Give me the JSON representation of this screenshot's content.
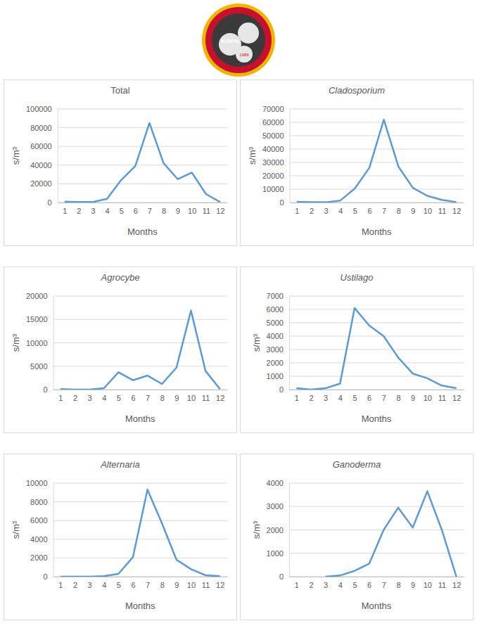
{
  "logo": {
    "text": "KONYA",
    "year": "1989"
  },
  "chart_data": [
    {
      "type": "line",
      "title": "Total",
      "x_label": "Months",
      "y_label": "s/m³",
      "categories": [
        "1",
        "2",
        "3",
        "4",
        "5",
        "6",
        "7",
        "8",
        "9",
        "10",
        "11",
        "12"
      ],
      "values": [
        1000,
        500,
        500,
        4000,
        24000,
        39000,
        85000,
        42000,
        25000,
        32000,
        9000,
        500
      ],
      "color": "#5b9bd5",
      "ylim": [
        0,
        100000
      ],
      "yticks": [
        0,
        20000,
        40000,
        60000,
        80000,
        100000
      ],
      "grid": true
    },
    {
      "type": "line",
      "title": "Cladosporium",
      "x_label": "Months",
      "y_label": "s/m³",
      "categories": [
        "1",
        "2",
        "3",
        "4",
        "5",
        "6",
        "7",
        "8",
        "9",
        "10",
        "11",
        "12"
      ],
      "values": [
        500,
        200,
        200,
        1500,
        10500,
        26000,
        62000,
        27000,
        11000,
        5000,
        2000,
        300
      ],
      "color": "#5b9bd5",
      "ylim": [
        0,
        70000
      ],
      "yticks": [
        0,
        10000,
        20000,
        30000,
        40000,
        50000,
        60000,
        70000
      ],
      "grid": true
    },
    {
      "type": "line",
      "title": "Agrocybe",
      "x_label": "Months",
      "y_label": "s/m³",
      "categories": [
        "1",
        "2",
        "3",
        "4",
        "5",
        "6",
        "7",
        "8",
        "9",
        "10",
        "11",
        "12"
      ],
      "values": [
        100,
        0,
        0,
        300,
        3700,
        2000,
        3000,
        1200,
        4700,
        16900,
        4000,
        100
      ],
      "color": "#5b9bd5",
      "ylim": [
        0,
        20000
      ],
      "yticks": [
        0,
        5000,
        10000,
        15000,
        20000
      ],
      "grid": true
    },
    {
      "type": "line",
      "title": "Ustilago",
      "x_label": "Months",
      "y_label": "s/m³",
      "categories": [
        "1",
        "2",
        "3",
        "4",
        "5",
        "6",
        "7",
        "8",
        "9",
        "10",
        "11",
        "12"
      ],
      "values": [
        100,
        0,
        100,
        450,
        6100,
        4800,
        4000,
        2400,
        1200,
        850,
        300,
        100
      ],
      "color": "#5b9bd5",
      "ylim": [
        0,
        7000
      ],
      "yticks": [
        0,
        1000,
        2000,
        3000,
        4000,
        5000,
        6000,
        7000
      ],
      "grid": true
    },
    {
      "type": "line",
      "title": "Alternaria",
      "x_label": "Months",
      "y_label": "s/m³",
      "categories": [
        "1",
        "2",
        "3",
        "4",
        "5",
        "6",
        "7",
        "8",
        "9",
        "10",
        "11",
        "12"
      ],
      "values": [
        0,
        0,
        0,
        50,
        300,
        2100,
        9300,
        5700,
        1800,
        800,
        150,
        50
      ],
      "color": "#5b9bd5",
      "ylim": [
        0,
        10000
      ],
      "yticks": [
        0,
        2000,
        4000,
        6000,
        8000,
        10000
      ],
      "grid": true
    },
    {
      "type": "line",
      "title": "Ganoderma",
      "x_label": "Months",
      "y_label": "s/m³",
      "categories": [
        "1",
        "2",
        "3",
        "4",
        "5",
        "6",
        "7",
        "8",
        "9",
        "10",
        "11",
        "12"
      ],
      "values": [
        null,
        null,
        0,
        50,
        250,
        550,
        2000,
        2950,
        2100,
        3650,
        2000,
        0
      ],
      "color": "#5b9bd5",
      "ylim": [
        0,
        4000
      ],
      "yticks": [
        0,
        1000,
        2000,
        3000,
        4000
      ],
      "grid": true
    }
  ]
}
